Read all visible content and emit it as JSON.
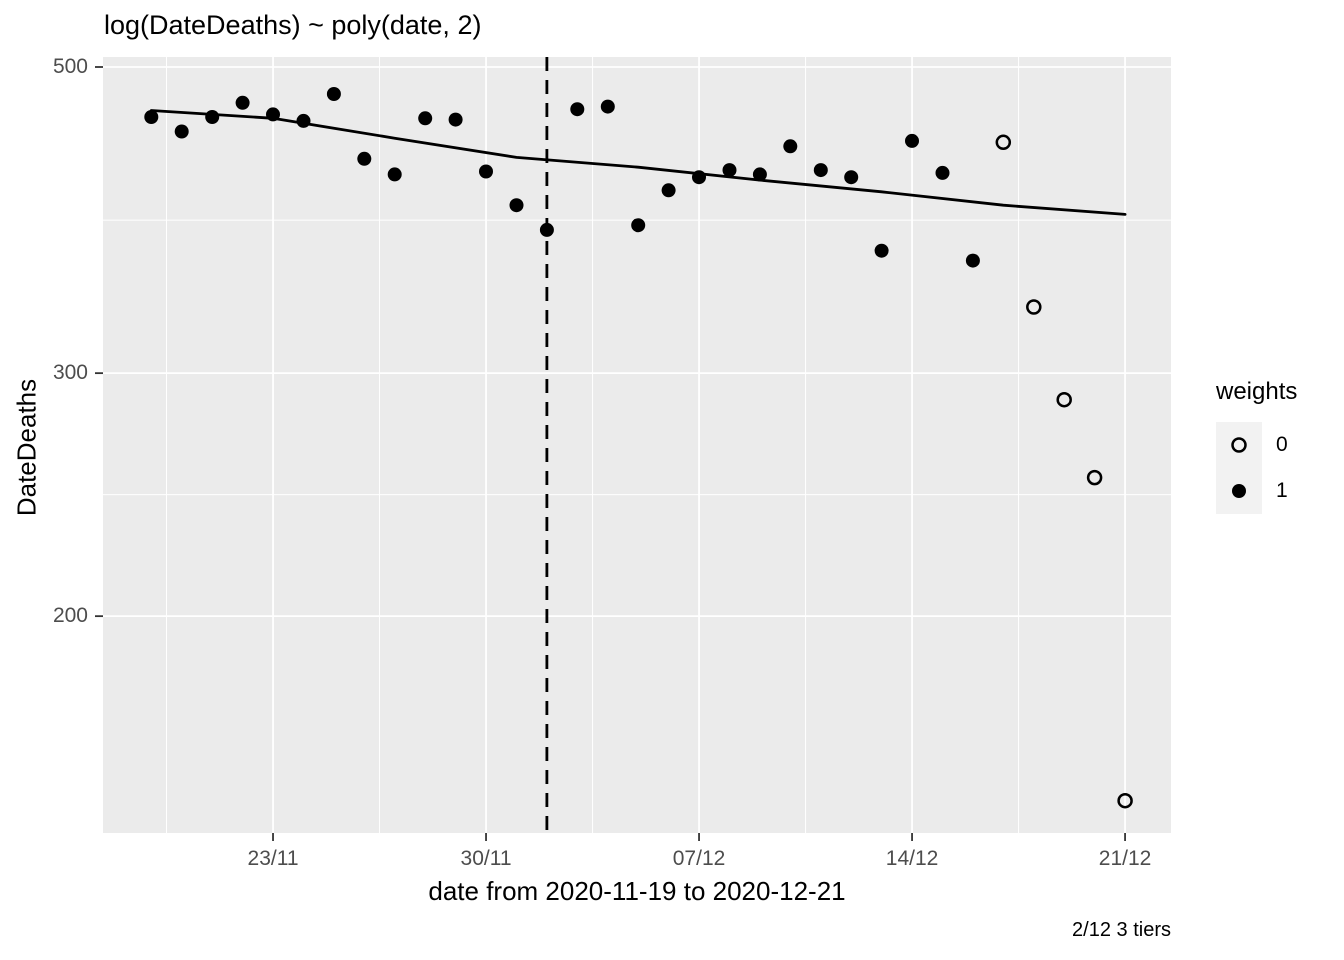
{
  "title": "log(DateDeaths) ~ poly(date, 2)",
  "caption": "2/12 3 tiers",
  "axes": {
    "x": {
      "title": "date from 2020-11-19 to 2020-12-21",
      "ticks": [
        {
          "label": "23/11",
          "date": "2020-11-23"
        },
        {
          "label": "30/11",
          "date": "2020-11-30"
        },
        {
          "label": "07/12",
          "date": "2020-12-07"
        },
        {
          "label": "14/12",
          "date": "2020-12-14"
        },
        {
          "label": "21/12",
          "date": "2020-12-21"
        }
      ]
    },
    "y": {
      "title": "DateDeaths",
      "scale": "log10",
      "ticks": [
        {
          "label": "500",
          "value": 500
        },
        {
          "label": "300",
          "value": 300
        },
        {
          "label": "200",
          "value": 200
        }
      ]
    }
  },
  "legend": {
    "title": "weights",
    "items": [
      {
        "label": "0",
        "marker": "open-circle"
      },
      {
        "label": "1",
        "marker": "filled-circle"
      }
    ]
  },
  "colors": {
    "panel_background": "#EBEBEB",
    "gridline": "#FFFFFF",
    "point": "#000000",
    "fit_line": "#000000",
    "vline": "#000000",
    "axis_tick_text": "#4D4D4D",
    "tick_mark": "#333333",
    "legend_key_background": "#F2F2F2"
  },
  "chart_data": {
    "type": "scatter",
    "title": "log(DateDeaths) ~ poly(date, 2)",
    "xlabel": "date from 2020-11-19 to 2020-12-21",
    "ylabel": "DateDeaths",
    "x_start_date": "2020-11-19",
    "x_end_date": "2020-12-21",
    "y_scale": "log10",
    "y_breaks": [
      200,
      300,
      500
    ],
    "ylim_approx": [
      140,
      510
    ],
    "grid": true,
    "legend_position": "right",
    "points": [
      {
        "date": "2020-11-19",
        "value": 460,
        "weight": 1
      },
      {
        "date": "2020-11-20",
        "value": 449,
        "weight": 1
      },
      {
        "date": "2020-11-21",
        "value": 460,
        "weight": 1
      },
      {
        "date": "2020-11-22",
        "value": 471,
        "weight": 1
      },
      {
        "date": "2020-11-23",
        "value": 462,
        "weight": 1
      },
      {
        "date": "2020-11-24",
        "value": 457,
        "weight": 1
      },
      {
        "date": "2020-11-25",
        "value": 478,
        "weight": 1
      },
      {
        "date": "2020-11-26",
        "value": 429,
        "weight": 1
      },
      {
        "date": "2020-11-27",
        "value": 418,
        "weight": 1
      },
      {
        "date": "2020-11-28",
        "value": 459,
        "weight": 1
      },
      {
        "date": "2020-11-29",
        "value": 458,
        "weight": 1
      },
      {
        "date": "2020-11-30",
        "value": 420,
        "weight": 1
      },
      {
        "date": "2020-12-01",
        "value": 397,
        "weight": 1
      },
      {
        "date": "2020-12-02",
        "value": 381,
        "weight": 1
      },
      {
        "date": "2020-12-03",
        "value": 466,
        "weight": 1
      },
      {
        "date": "2020-12-04",
        "value": 468,
        "weight": 1
      },
      {
        "date": "2020-12-05",
        "value": 384,
        "weight": 1
      },
      {
        "date": "2020-12-06",
        "value": 407,
        "weight": 1
      },
      {
        "date": "2020-12-07",
        "value": 416,
        "weight": 1
      },
      {
        "date": "2020-12-08",
        "value": 421,
        "weight": 1
      },
      {
        "date": "2020-12-09",
        "value": 418,
        "weight": 1
      },
      {
        "date": "2020-12-10",
        "value": 438,
        "weight": 1
      },
      {
        "date": "2020-12-11",
        "value": 421,
        "weight": 1
      },
      {
        "date": "2020-12-12",
        "value": 416,
        "weight": 1
      },
      {
        "date": "2020-12-13",
        "value": 368,
        "weight": 1
      },
      {
        "date": "2020-12-14",
        "value": 442,
        "weight": 1
      },
      {
        "date": "2020-12-15",
        "value": 419,
        "weight": 1
      },
      {
        "date": "2020-12-16",
        "value": 362,
        "weight": 1
      },
      {
        "date": "2020-12-17",
        "value": 441,
        "weight": 0
      },
      {
        "date": "2020-12-18",
        "value": 335,
        "weight": 0
      },
      {
        "date": "2020-12-19",
        "value": 287,
        "weight": 0
      },
      {
        "date": "2020-12-20",
        "value": 252,
        "weight": 0
      },
      {
        "date": "2020-12-21",
        "value": 147,
        "weight": 0
      }
    ],
    "fit_line": {
      "model": "log(DateDeaths) ~ poly(date, 2)",
      "samples": [
        {
          "date": "2020-11-19",
          "value": 465
        },
        {
          "date": "2020-11-23",
          "value": 459
        },
        {
          "date": "2020-11-27",
          "value": 444
        },
        {
          "date": "2020-12-01",
          "value": 430
        },
        {
          "date": "2020-12-05",
          "value": 423
        },
        {
          "date": "2020-12-09",
          "value": 414
        },
        {
          "date": "2020-12-13",
          "value": 406
        },
        {
          "date": "2020-12-17",
          "value": 397
        },
        {
          "date": "2020-12-21",
          "value": 391
        }
      ]
    },
    "vline": {
      "date": "2020-12-02",
      "style": "dashed",
      "annotation": "2/12 3 tiers"
    }
  }
}
